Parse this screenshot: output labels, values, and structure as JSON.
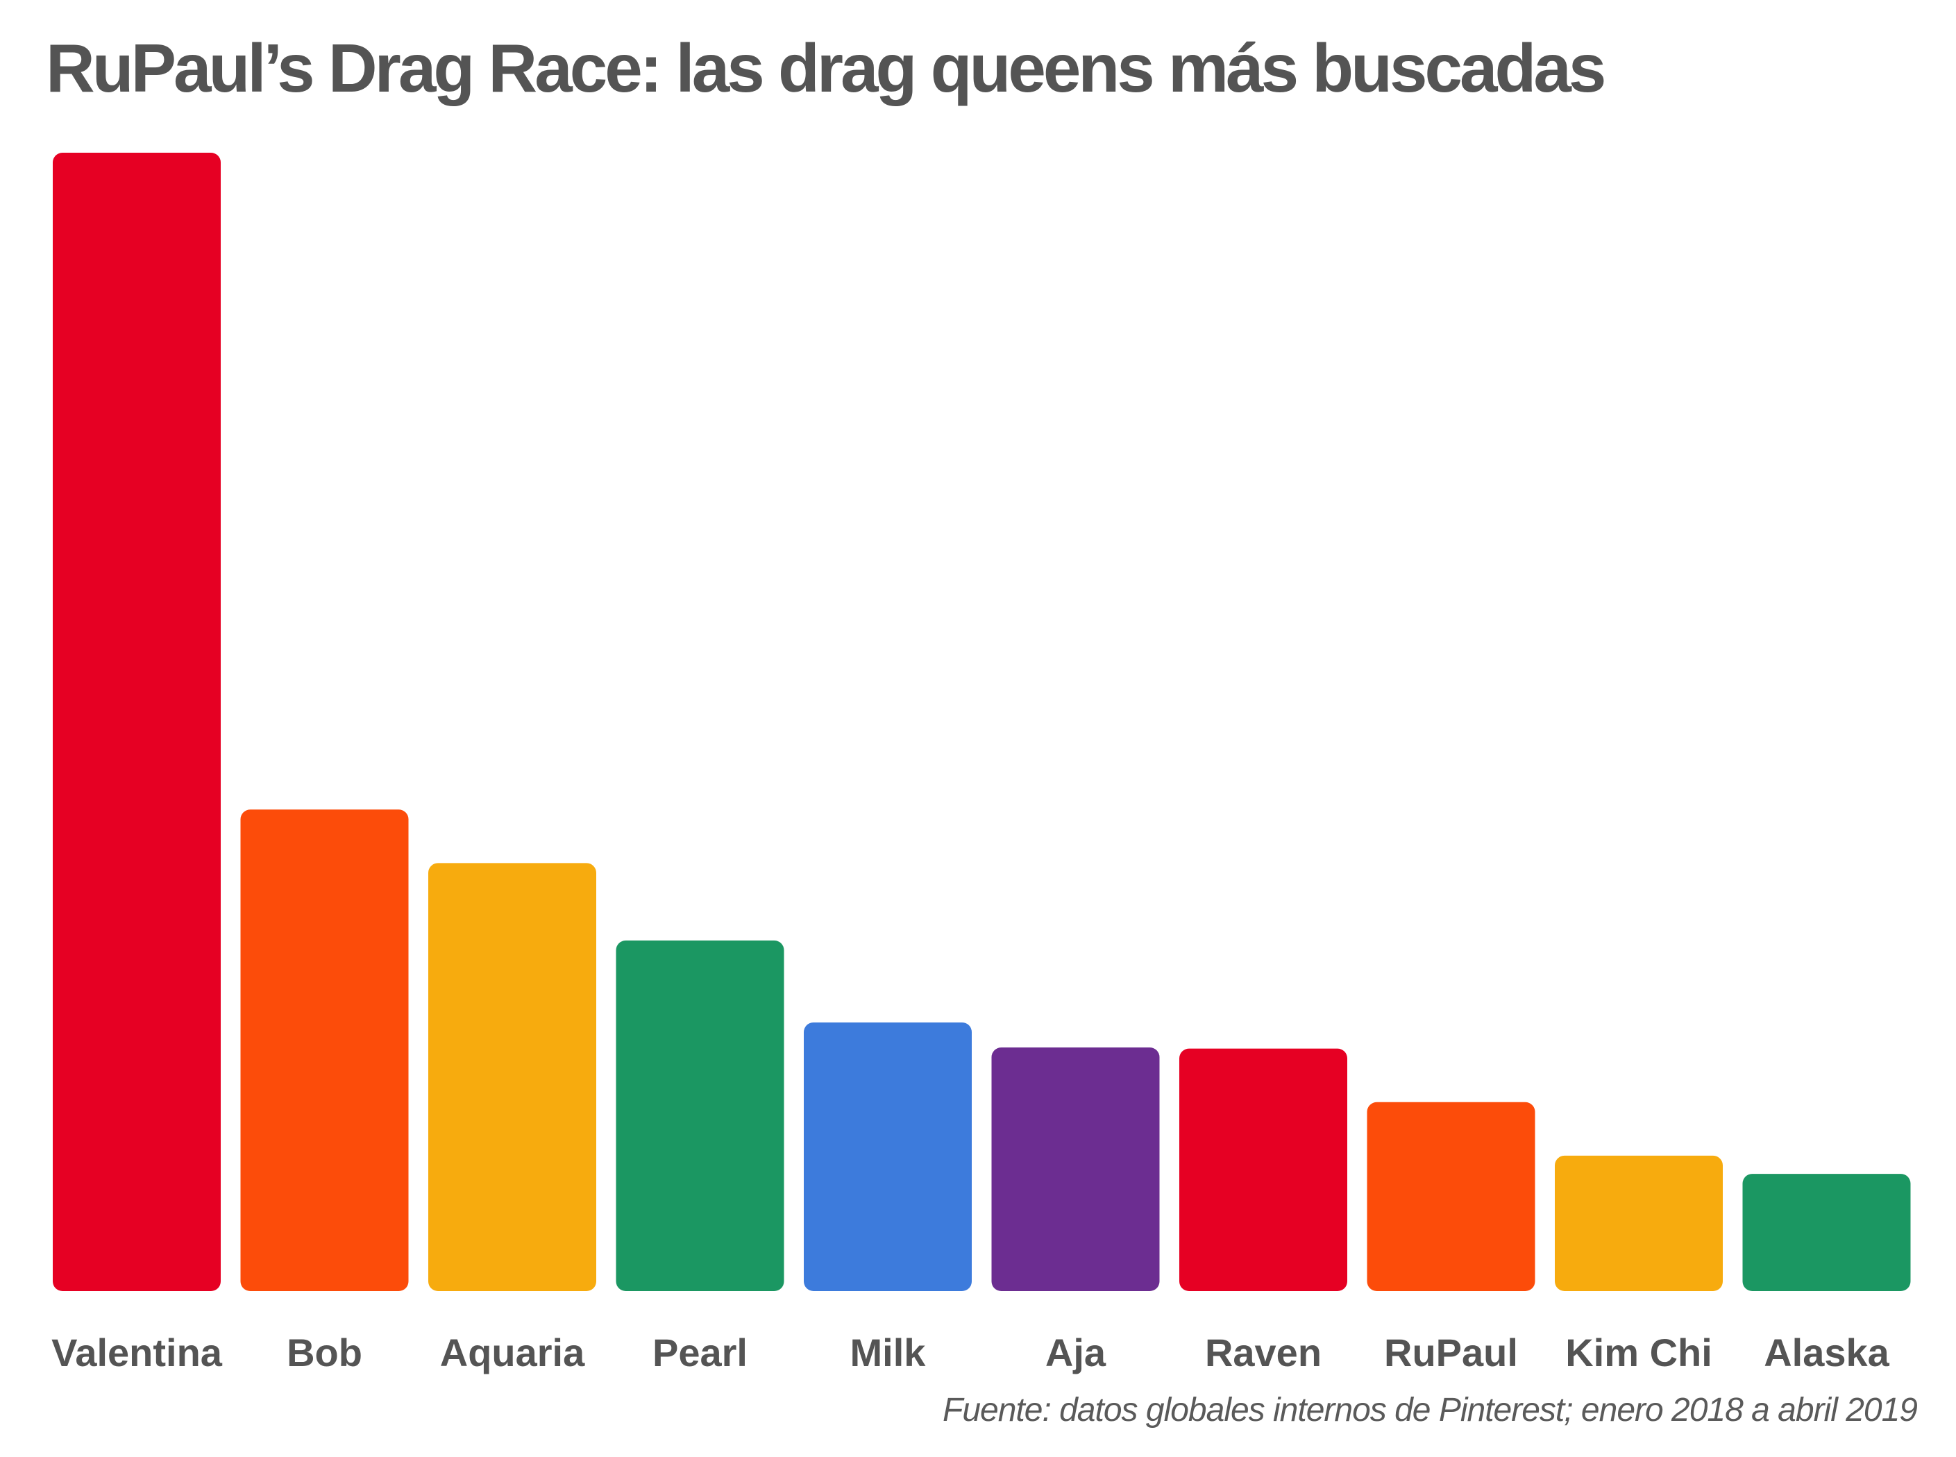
{
  "title": "RuPaul’s Drag Race: las drag queens más buscadas",
  "source": "Fuente: datos globales internos de Pinterest; enero 2018 a abril 2019",
  "chart_data": {
    "type": "bar",
    "title": "RuPaul’s Drag Race: las drag queens más buscadas",
    "xlabel": "",
    "ylabel": "",
    "grid": false,
    "y_axis_shown": false,
    "ylim": [
      0,
      100
    ],
    "categories": [
      "Valentina",
      "Bob",
      "Aquaria",
      "Pearl",
      "Milk",
      "Aja",
      "Raven",
      "RuPaul",
      "Kim Chi",
      "Alaska"
    ],
    "values": [
      100,
      42.3,
      37.6,
      30.8,
      23.6,
      21.4,
      21.3,
      16.6,
      11.9,
      10.3
    ],
    "colors": [
      "#e60023",
      "#fc4c0a",
      "#f7ab0e",
      "#1b9762",
      "#3d7bdc",
      "#6c2d91",
      "#e60023",
      "#fc4c0a",
      "#f7ab0e",
      "#1b9762"
    ]
  }
}
